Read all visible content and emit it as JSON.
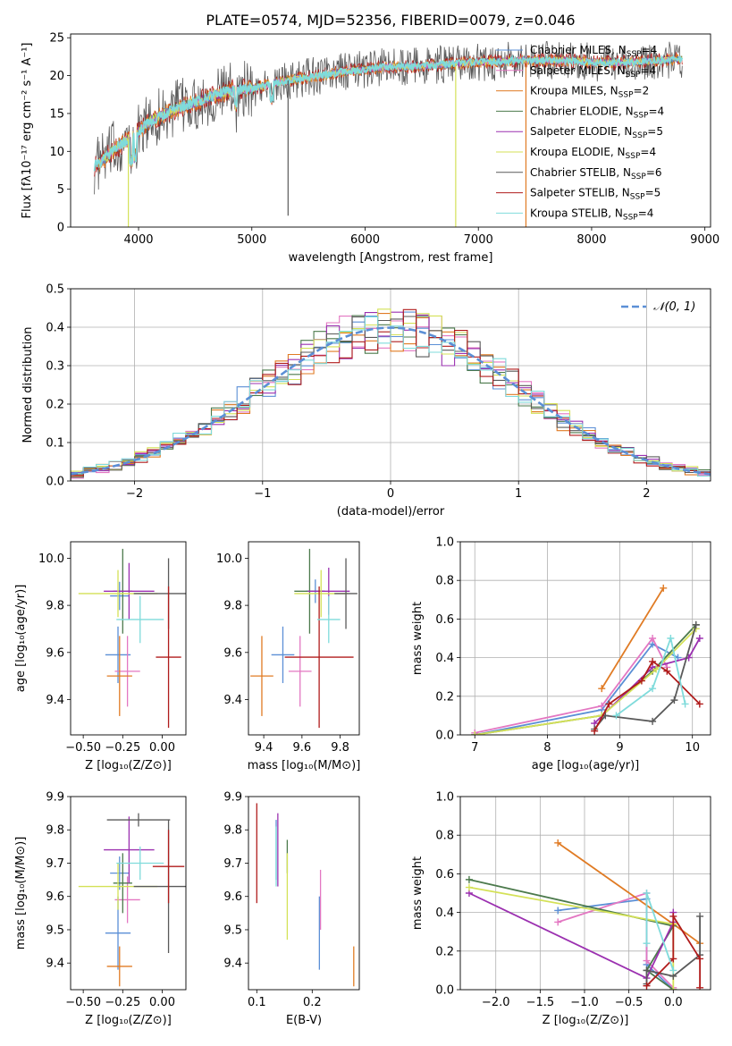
{
  "figure": {
    "title": "PLATE=0574, MJD=52356, FIBERID=0079, z=0.046"
  },
  "colors": {
    "Chabrier MILES": "#5b8fd6",
    "Salpeter MILES": "#e377c2",
    "Kroupa MILES": "#e07b24",
    "Chabrier ELODIE": "#4c7a4c",
    "Salpeter ELODIE": "#9b30b0",
    "Kroupa ELODIE": "#d4e157",
    "Chabrier STELIB": "#5a5a5a",
    "Salpeter STELIB": "#b01c1c",
    "Kroupa STELIB": "#7fdbdb"
  },
  "chart_data": [
    {
      "id": "spectrum",
      "type": "line",
      "xlabel": "wavelength [Angstrom, rest frame]",
      "ylabel": "Flux [fλ10⁻¹⁷ erg cm⁻² s⁻¹ A⁻¹]",
      "xlim": [
        3400,
        9050
      ],
      "ylim": [
        0,
        25.5
      ],
      "xticks": [
        4000,
        5000,
        6000,
        7000,
        8000,
        9000
      ],
      "yticks": [
        0,
        5,
        10,
        15,
        20,
        25
      ],
      "legend_position": "top-right",
      "legend": [
        {
          "label": "Chabrier MILES, N",
          "sub": "SSP",
          "tail": "=4"
        },
        {
          "label": "Salpeter MILES, N",
          "sub": "SSP",
          "tail": "=4"
        },
        {
          "label": "Kroupa MILES, N",
          "sub": "SSP",
          "tail": "=2"
        },
        {
          "label": "Chabrier ELODIE, N",
          "sub": "SSP",
          "tail": "=4"
        },
        {
          "label": "Salpeter ELODIE, N",
          "sub": "SSP",
          "tail": "=5"
        },
        {
          "label": "Kroupa ELODIE, N",
          "sub": "SSP",
          "tail": "=4"
        },
        {
          "label": "Chabrier STELIB, N",
          "sub": "SSP",
          "tail": "=6"
        },
        {
          "label": "Salpeter STELIB, N",
          "sub": "SSP",
          "tail": "=5"
        },
        {
          "label": "Kroupa STELIB, N",
          "sub": "SSP",
          "tail": "=4"
        }
      ],
      "continuum": [
        [
          3600,
          8.0
        ],
        [
          3700,
          9.0
        ],
        [
          3800,
          10.5
        ],
        [
          3900,
          11.5
        ],
        [
          4000,
          12.5
        ],
        [
          4100,
          14.0
        ],
        [
          4200,
          14.8
        ],
        [
          4400,
          16.0
        ],
        [
          4600,
          17.0
        ],
        [
          4800,
          18.0
        ],
        [
          5000,
          18.3
        ],
        [
          5200,
          19.0
        ],
        [
          5400,
          19.6
        ],
        [
          5600,
          20.0
        ],
        [
          5800,
          20.5
        ],
        [
          6000,
          20.8
        ],
        [
          6200,
          21.2
        ],
        [
          6400,
          21.2
        ],
        [
          6600,
          21.4
        ],
        [
          6800,
          21.6
        ],
        [
          7000,
          21.8
        ],
        [
          7200,
          21.9
        ],
        [
          7400,
          22.0
        ],
        [
          7600,
          22.0
        ],
        [
          7800,
          22.0
        ],
        [
          8000,
          21.8
        ],
        [
          8200,
          21.7
        ],
        [
          8400,
          21.8
        ],
        [
          8600,
          22.0
        ],
        [
          8800,
          22.2
        ]
      ],
      "dropouts": [
        {
          "x": 3910,
          "series": "Kroupa ELODIE"
        },
        {
          "x": 6800,
          "series": "Kroupa ELODIE"
        },
        {
          "x": 7420,
          "series": "Kroupa MILES"
        },
        {
          "x": 5320,
          "series": "Chabrier STELIB",
          "value": 1.5
        }
      ]
    },
    {
      "id": "residuals",
      "type": "histogram",
      "xlabel": "(data-model)/error",
      "ylabel": "Normed distribution",
      "xlim": [
        -2.5,
        2.5
      ],
      "ylim": [
        0,
        0.5
      ],
      "xticks": [
        -2,
        -1,
        0,
        1,
        2
      ],
      "yticks": [
        0.0,
        0.1,
        0.2,
        0.3,
        0.4,
        0.5
      ],
      "grid": true,
      "legend_position": "top-right",
      "legend": [
        {
          "label": "𝒩(0, 1)",
          "color": "#5b8fd6",
          "style": "dashed"
        }
      ],
      "bin_width": 0.1
    },
    {
      "id": "age-vs-Z",
      "type": "errorbar",
      "xlabel": "Z [log₁₀(Z/Z⊙)]",
      "ylabel": "age  [log₁₀(age/yr)]",
      "xlim": [
        -0.58,
        0.15
      ],
      "ylim": [
        9.25,
        10.07
      ],
      "xticks": [
        -0.5,
        -0.25,
        0.0
      ],
      "xticklabels": [
        "−0.50",
        "−0.25",
        "0.00"
      ],
      "yticks": [
        9.4,
        9.6,
        9.8,
        10.0
      ],
      "points": [
        {
          "series": "Chabrier MILES",
          "x": -0.28,
          "xerr": 0.08,
          "y": 9.59,
          "yerr": 0.12
        },
        {
          "series": "Chabrier MILES",
          "x": -0.27,
          "xerr": 0.06,
          "y": 9.84,
          "yerr": 0.06
        },
        {
          "series": "Salpeter MILES",
          "x": -0.22,
          "xerr": 0.08,
          "y": 9.52,
          "yerr": 0.15
        },
        {
          "series": "Kroupa MILES",
          "x": -0.27,
          "xerr": 0.08,
          "y": 9.5,
          "yerr": 0.17
        },
        {
          "series": "Chabrier ELODIE",
          "x": -0.25,
          "xerr": 0.06,
          "y": 9.86,
          "yerr": 0.18
        },
        {
          "series": "Salpeter ELODIE",
          "x": -0.21,
          "xerr": 0.16,
          "y": 9.86,
          "yerr": 0.12
        },
        {
          "series": "Kroupa ELODIE",
          "x": -0.28,
          "xerr": 0.25,
          "y": 9.85,
          "yerr": 0.1
        },
        {
          "series": "Chabrier STELIB",
          "x": 0.04,
          "xerr": 0.22,
          "y": 9.85,
          "yerr": 0.15
        },
        {
          "series": "Salpeter STELIB",
          "x": 0.04,
          "xerr": 0.08,
          "y": 9.58,
          "yerr": 0.3
        },
        {
          "series": "Kroupa STELIB",
          "x": -0.14,
          "xerr": 0.15,
          "y": 9.74,
          "yerr": 0.1
        }
      ]
    },
    {
      "id": "age-vs-mass",
      "type": "errorbar",
      "xlabel": "mass [log₁₀(M/M⊙)]",
      "ylabel": "",
      "xlim": [
        9.32,
        9.9
      ],
      "ylim": [
        9.25,
        10.07
      ],
      "xticks": [
        9.4,
        9.6,
        9.8
      ],
      "yticks": [
        9.4,
        9.6,
        9.8,
        10.0
      ],
      "points": [
        {
          "series": "Chabrier MILES",
          "x": 9.5,
          "xerr": 0.06,
          "y": 9.59,
          "yerr": 0.12
        },
        {
          "series": "Chabrier MILES",
          "x": 9.67,
          "xerr": 0.05,
          "y": 9.86,
          "yerr": 0.05
        },
        {
          "series": "Salpeter MILES",
          "x": 9.59,
          "xerr": 0.06,
          "y": 9.52,
          "yerr": 0.15
        },
        {
          "series": "Kroupa MILES",
          "x": 9.39,
          "xerr": 0.06,
          "y": 9.5,
          "yerr": 0.17
        },
        {
          "series": "Chabrier ELODIE",
          "x": 9.64,
          "xerr": 0.08,
          "y": 9.86,
          "yerr": 0.18
        },
        {
          "series": "Salpeter ELODIE",
          "x": 9.74,
          "xerr": 0.11,
          "y": 9.86,
          "yerr": 0.1
        },
        {
          "series": "Kroupa ELODIE",
          "x": 9.7,
          "xerr": 0.14,
          "y": 9.85,
          "yerr": 0.1
        },
        {
          "series": "Chabrier STELIB",
          "x": 9.83,
          "xerr": 0.06,
          "y": 9.85,
          "yerr": 0.15
        },
        {
          "series": "Salpeter STELIB",
          "x": 9.69,
          "xerr": 0.18,
          "y": 9.58,
          "yerr": 0.3
        },
        {
          "series": "Kroupa STELIB",
          "x": 9.74,
          "xerr": 0.06,
          "y": 9.74,
          "yerr": 0.1
        }
      ]
    },
    {
      "id": "weight-vs-age",
      "type": "line",
      "xlabel": "age  [log₁₀(age/yr)]",
      "ylabel": "mass weight",
      "xlim": [
        6.8,
        10.25
      ],
      "ylim": [
        0,
        1.0
      ],
      "xticks": [
        7,
        8,
        9,
        10
      ],
      "yticks": [
        0.0,
        0.2,
        0.4,
        0.6,
        0.8,
        1.0
      ],
      "grid": true,
      "series": [
        {
          "name": "Chabrier MILES",
          "points": [
            [
              7.0,
              0.0
            ],
            [
              8.75,
              0.13
            ],
            [
              9.45,
              0.47
            ],
            [
              9.8,
              0.4
            ]
          ]
        },
        {
          "name": "Salpeter MILES",
          "points": [
            [
              7.0,
              0.01
            ],
            [
              8.75,
              0.15
            ],
            [
              9.45,
              0.5
            ],
            [
              9.65,
              0.35
            ]
          ]
        },
        {
          "name": "Kroupa MILES",
          "points": [
            [
              8.75,
              0.24
            ],
            [
              9.6,
              0.76
            ]
          ]
        },
        {
          "name": "Chabrier ELODIE",
          "points": [
            [
              7.0,
              0.0
            ],
            [
              8.75,
              0.1
            ],
            [
              9.45,
              0.33
            ],
            [
              10.05,
              0.57
            ]
          ]
        },
        {
          "name": "Salpeter ELODIE",
          "points": [
            [
              8.65,
              0.06
            ],
            [
              9.45,
              0.35
            ],
            [
              9.95,
              0.4
            ],
            [
              10.1,
              0.5
            ]
          ]
        },
        {
          "name": "Kroupa ELODIE",
          "points": [
            [
              7.0,
              0.0
            ],
            [
              8.75,
              0.1
            ],
            [
              9.5,
              0.34
            ],
            [
              10.05,
              0.55
            ]
          ]
        },
        {
          "name": "Chabrier STELIB",
          "points": [
            [
              8.65,
              0.03
            ],
            [
              8.8,
              0.1
            ],
            [
              9.45,
              0.07
            ],
            [
              9.75,
              0.18
            ],
            [
              10.05,
              0.57
            ]
          ]
        },
        {
          "name": "Salpeter STELIB",
          "points": [
            [
              8.65,
              0.02
            ],
            [
              8.85,
              0.16
            ],
            [
              9.3,
              0.28
            ],
            [
              9.45,
              0.38
            ],
            [
              9.65,
              0.33
            ],
            [
              10.1,
              0.16
            ]
          ]
        },
        {
          "name": "Kroupa STELIB",
          "points": [
            [
              8.95,
              0.1
            ],
            [
              9.45,
              0.24
            ],
            [
              9.7,
              0.5
            ],
            [
              9.9,
              0.16
            ]
          ]
        }
      ]
    },
    {
      "id": "mass-vs-Z",
      "type": "errorbar",
      "xlabel": "Z [log₁₀(Z/Z⊙)]",
      "ylabel": "mass [log₁₀(M/M⊙)]",
      "xlim": [
        -0.58,
        0.15
      ],
      "ylim": [
        9.32,
        9.9
      ],
      "xticks": [
        -0.5,
        -0.25,
        0.0
      ],
      "xticklabels": [
        "−0.50",
        "−0.25",
        "0.00"
      ],
      "yticks": [
        9.4,
        9.5,
        9.6,
        9.7,
        9.8,
        9.9
      ],
      "points": [
        {
          "series": "Chabrier MILES",
          "x": -0.28,
          "xerr": 0.08,
          "y": 9.49,
          "yerr": 0.11
        },
        {
          "series": "Chabrier MILES",
          "x": -0.27,
          "xerr": 0.06,
          "y": 9.67,
          "yerr": 0.05
        },
        {
          "series": "Salpeter MILES",
          "x": -0.22,
          "xerr": 0.08,
          "y": 9.59,
          "yerr": 0.07
        },
        {
          "series": "Kroupa MILES",
          "x": -0.27,
          "xerr": 0.08,
          "y": 9.39,
          "yerr": 0.06
        },
        {
          "series": "Chabrier ELODIE",
          "x": -0.25,
          "xerr": 0.06,
          "y": 9.64,
          "yerr": 0.09
        },
        {
          "series": "Salpeter ELODIE",
          "x": -0.21,
          "xerr": 0.16,
          "y": 9.74,
          "yerr": 0.1
        },
        {
          "series": "Kroupa ELODIE",
          "x": -0.28,
          "xerr": 0.25,
          "y": 9.63,
          "yerr": 0.07
        },
        {
          "series": "Chabrier STELIB",
          "x": 0.04,
          "xerr": 0.22,
          "y": 9.63,
          "yerr": 0.2
        },
        {
          "series": "Chabrier STELIB",
          "x": -0.15,
          "xerr": 0.2,
          "y": 9.83,
          "yerr": 0.02
        },
        {
          "series": "Salpeter STELIB",
          "x": 0.04,
          "xerr": 0.1,
          "y": 9.69,
          "yerr": 0.11
        },
        {
          "series": "Kroupa STELIB",
          "x": -0.14,
          "xerr": 0.15,
          "y": 9.7,
          "yerr": 0.05
        }
      ]
    },
    {
      "id": "mass-vs-EBV",
      "type": "errorbar",
      "xlabel": "E(B-V)",
      "ylabel": "",
      "xlim": [
        0.085,
        0.285
      ],
      "ylim": [
        9.32,
        9.9
      ],
      "xticks": [
        0.1,
        0.2
      ],
      "yticks": [
        9.4,
        9.5,
        9.6,
        9.7,
        9.8,
        9.9
      ],
      "points": [
        {
          "series": "Chabrier MILES",
          "x": 0.135,
          "y": 9.74,
          "yerr": 0.09
        },
        {
          "series": "Chabrier MILES",
          "x": 0.213,
          "y": 9.49,
          "yerr": 0.11
        },
        {
          "series": "Salpeter MILES",
          "x": 0.215,
          "y": 9.59,
          "yerr": 0.09
        },
        {
          "series": "Kroupa MILES",
          "x": 0.275,
          "y": 9.39,
          "yerr": 0.06
        },
        {
          "series": "Chabrier ELODIE",
          "x": 0.155,
          "y": 9.72,
          "yerr": 0.05
        },
        {
          "series": "Salpeter ELODIE",
          "x": 0.138,
          "y": 9.74,
          "yerr": 0.11
        },
        {
          "series": "Kroupa ELODIE",
          "x": 0.155,
          "y": 9.6,
          "yerr": 0.13
        },
        {
          "series": "Salpeter STELIB",
          "x": 0.1,
          "y": 9.73,
          "yerr": 0.15
        },
        {
          "series": "Kroupa STELIB",
          "x": 0.135,
          "y": 9.72,
          "yerr": 0.09
        }
      ]
    },
    {
      "id": "weight-vs-Z",
      "type": "line",
      "xlabel": "Z [log₁₀(Z/Z⊙)]",
      "ylabel": "mass weight",
      "xlim": [
        -2.4,
        0.42
      ],
      "ylim": [
        0,
        1.0
      ],
      "xticks": [
        -2.0,
        -1.5,
        -1.0,
        -0.5,
        0.0
      ],
      "xticklabels": [
        "−2.0",
        "−1.5",
        "−1.0",
        "−0.5",
        "0.0"
      ],
      "yticks": [
        0.0,
        0.2,
        0.4,
        0.6,
        0.8,
        1.0
      ],
      "grid": true,
      "series": [
        {
          "name": "Chabrier MILES",
          "points": [
            [
              -1.3,
              0.41
            ],
            [
              -0.3,
              0.47
            ],
            [
              -0.3,
              0.13
            ],
            [
              0.0,
              0.0
            ]
          ]
        },
        {
          "name": "Salpeter MILES",
          "points": [
            [
              -1.3,
              0.35
            ],
            [
              -0.3,
              0.5
            ],
            [
              -0.3,
              0.15
            ],
            [
              0.0,
              0.01
            ]
          ]
        },
        {
          "name": "Kroupa MILES",
          "points": [
            [
              -1.3,
              0.76
            ],
            [
              0.0,
              0.34
            ],
            [
              0.3,
              0.24
            ]
          ]
        },
        {
          "name": "Chabrier ELODIE",
          "points": [
            [
              -2.3,
              0.57
            ],
            [
              0.0,
              0.33
            ],
            [
              -0.3,
              0.1
            ],
            [
              0.0,
              0.0
            ]
          ]
        },
        {
          "name": "Salpeter ELODIE",
          "points": [
            [
              -2.3,
              0.5
            ],
            [
              -0.3,
              0.06
            ],
            [
              0.0,
              0.35
            ],
            [
              0.0,
              0.4
            ]
          ]
        },
        {
          "name": "Kroupa ELODIE",
          "points": [
            [
              -2.3,
              0.53
            ],
            [
              0.0,
              0.34
            ],
            [
              0.0,
              0.0
            ]
          ]
        },
        {
          "name": "Chabrier STELIB",
          "points": [
            [
              -0.3,
              0.03
            ],
            [
              -0.3,
              0.1
            ],
            [
              0.0,
              0.07
            ],
            [
              0.3,
              0.18
            ],
            [
              0.3,
              0.38
            ]
          ]
        },
        {
          "name": "Salpeter STELIB",
          "points": [
            [
              -0.3,
              0.02
            ],
            [
              0.0,
              0.16
            ],
            [
              0.0,
              0.38
            ],
            [
              0.3,
              0.16
            ],
            [
              0.3,
              0.01
            ]
          ]
        },
        {
          "name": "Kroupa STELIB",
          "points": [
            [
              -0.3,
              0.24
            ],
            [
              -0.3,
              0.5
            ],
            [
              0.0,
              0.1
            ]
          ]
        }
      ]
    }
  ]
}
